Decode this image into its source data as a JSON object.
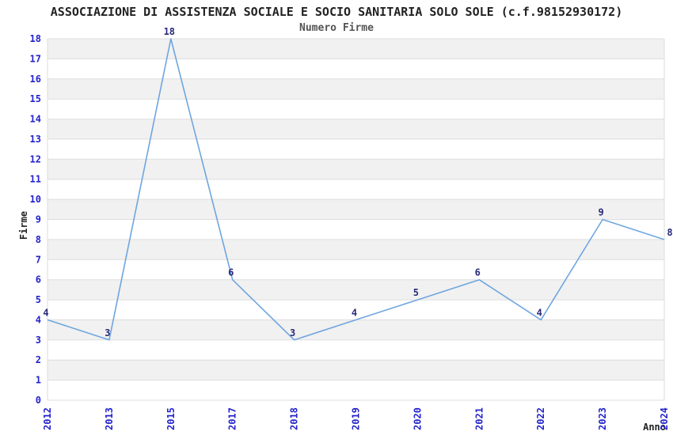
{
  "header": {
    "title": "ASSOCIAZIONE DI ASSISTENZA SOCIALE E SOCIO SANITARIA SOLO SOLE (c.f.98152930172)",
    "subtitle": "Numero Firme"
  },
  "chart_data": {
    "type": "line",
    "title": "ASSOCIAZIONE DI ASSISTENZA SOCIALE E SOCIO SANITARIA SOLO SOLE (c.f.98152930172)",
    "subtitle": "Numero Firme",
    "categories": [
      "2012",
      "2013",
      "2015",
      "2017",
      "2018",
      "2019",
      "2020",
      "2021",
      "2022",
      "2023",
      "2024"
    ],
    "values": [
      4,
      3,
      18,
      6,
      3,
      4,
      5,
      6,
      4,
      9,
      8
    ],
    "series_name": "Numero Firme",
    "xlabel": "Anno",
    "ylabel": "Firme",
    "ylim": [
      0,
      18
    ],
    "y_tick_step": 1,
    "x_tick_rotation": 90,
    "grid": "horizontal-bands",
    "legend": "none",
    "data_labels": true,
    "colors": {
      "line": "#6FA5DF",
      "tick_label": "#2323CC",
      "data_label": "#2A2A7A",
      "band": "#F1F1F1",
      "gridline": "#DDDDDD",
      "title": "#222222",
      "subtitle": "#555555",
      "background": "#FFFFFF"
    }
  }
}
